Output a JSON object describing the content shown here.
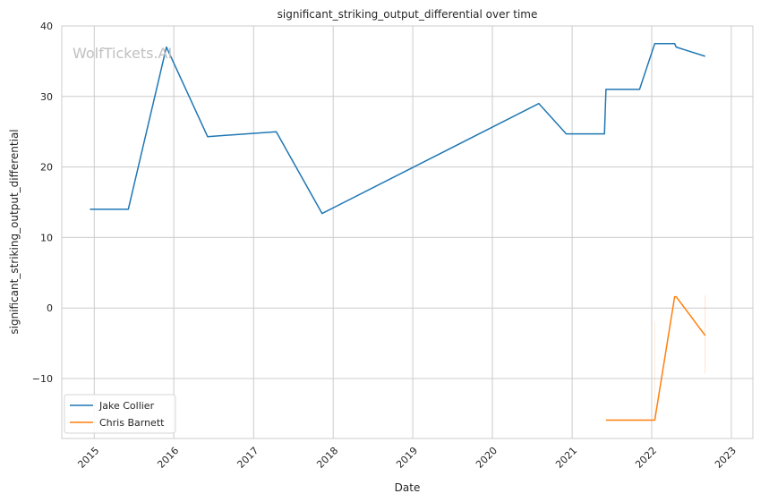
{
  "chart_data": {
    "type": "line",
    "title": "significant_striking_output_differential over time",
    "xlabel": "Date",
    "ylabel": "significant_striking_output_differential",
    "watermark": "WolfTickets.AI",
    "xlim": [
      "2014-08-05",
      "2023-04-10"
    ],
    "ylim": [
      -18.5,
      40
    ],
    "x_ticks": [
      "2015-01-01",
      "2016-01-01",
      "2017-01-01",
      "2018-01-01",
      "2019-01-01",
      "2020-01-01",
      "2021-01-01",
      "2022-01-01",
      "2023-01-01"
    ],
    "x_tick_labels": [
      "2015",
      "2016",
      "2017",
      "2018",
      "2019",
      "2020",
      "2021",
      "2022",
      "2023"
    ],
    "y_ticks": [
      -10,
      0,
      10,
      20,
      30,
      40
    ],
    "y_tick_labels": [
      "−10",
      "0",
      "10",
      "20",
      "30",
      "40"
    ],
    "grid": true,
    "legend_position": "lower-left",
    "series": [
      {
        "name": "Jake Collier",
        "color": "#1f77b4",
        "points": [
          [
            "2014-12-12",
            14.0
          ],
          [
            "2015-06-06",
            14.0
          ],
          [
            "2015-11-28",
            37.0
          ],
          [
            "2016-06-04",
            24.3
          ],
          [
            "2017-04-15",
            25.0
          ],
          [
            "2017-11-11",
            13.4
          ],
          [
            "2020-08-01",
            29.0
          ],
          [
            "2020-12-05",
            24.7
          ],
          [
            "2021-05-29",
            24.7
          ],
          [
            "2021-06-05",
            31.0
          ],
          [
            "2021-11-06",
            31.0
          ],
          [
            "2022-01-15",
            37.5
          ],
          [
            "2022-04-16",
            37.5
          ],
          [
            "2022-04-23",
            37.0
          ],
          [
            "2022-09-03",
            35.7
          ]
        ]
      },
      {
        "name": "Chris Barnett",
        "color": "#ff7f0e",
        "points": [
          [
            "2021-06-05",
            -15.9
          ],
          [
            "2022-01-15",
            -15.9
          ],
          [
            "2022-04-16",
            1.6
          ],
          [
            "2022-04-23",
            1.6
          ],
          [
            "2022-09-03",
            -3.9
          ]
        ]
      }
    ]
  }
}
